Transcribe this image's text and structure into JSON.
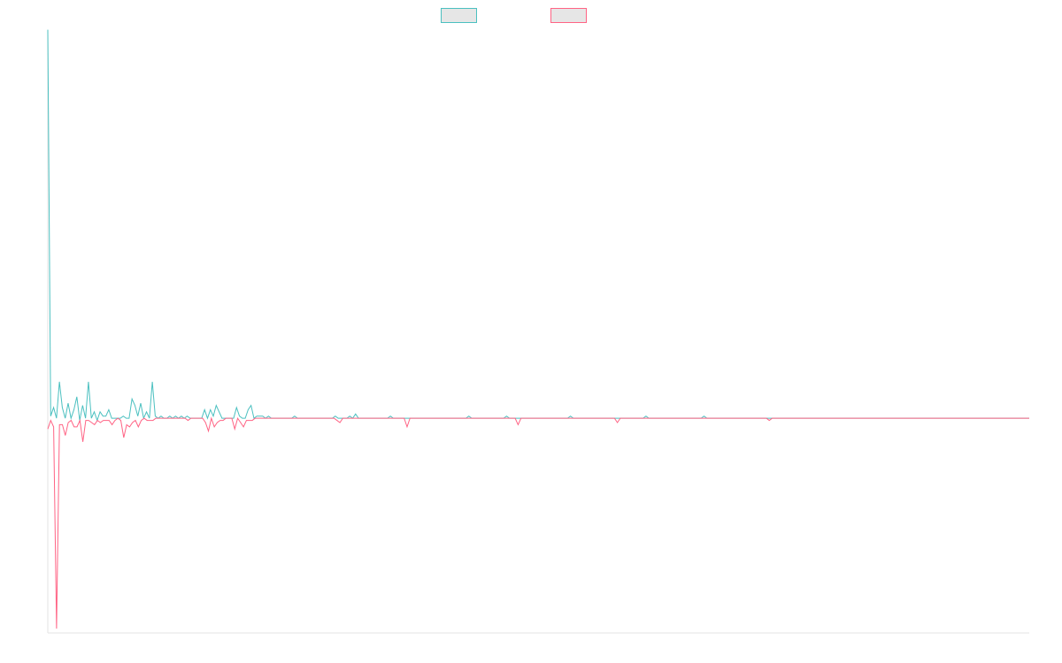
{
  "chart_data": {
    "type": "line",
    "title": "",
    "xlabel": "",
    "ylabel": "",
    "legend_position": "top-center",
    "grid": false,
    "x_range": [
      0,
      320
    ],
    "y_range": [
      -100,
      180
    ],
    "baseline": 0,
    "series": [
      {
        "name": "",
        "color": "#4bc0c0",
        "fill": "#e6e6e6",
        "values": [
          181,
          1,
          5,
          0,
          17,
          5,
          0,
          7,
          0,
          4,
          10,
          -1,
          6,
          0,
          17,
          0,
          3,
          -1,
          3,
          1,
          1,
          4,
          0,
          0,
          0,
          0,
          1,
          0,
          0,
          9,
          6,
          1,
          7,
          0,
          3,
          0,
          17,
          1,
          0,
          1,
          0,
          0,
          1,
          0,
          1,
          0,
          1,
          0,
          1,
          0,
          0,
          0,
          0,
          0,
          4,
          0,
          4,
          1,
          6,
          3,
          0,
          0,
          0,
          0,
          0,
          5,
          1,
          0,
          0,
          4,
          6,
          0,
          1,
          1,
          1,
          0,
          1,
          0,
          0,
          0,
          0,
          0,
          0,
          0,
          0,
          1,
          0,
          0,
          0,
          0,
          0,
          0,
          0,
          0,
          0,
          0,
          0,
          0,
          0,
          1,
          0,
          0,
          0,
          0,
          1,
          0,
          2,
          0,
          0,
          0,
          0,
          0,
          0,
          0,
          0,
          0,
          0,
          0,
          1,
          0,
          0,
          0,
          0,
          0,
          0,
          0,
          0,
          0,
          0,
          0,
          0,
          0,
          0,
          0,
          0,
          0,
          0,
          0,
          0,
          0,
          0,
          0,
          0,
          0,
          0,
          1,
          0,
          0,
          0,
          0,
          0,
          0,
          0,
          0,
          0,
          0,
          0,
          0,
          1,
          0,
          0,
          0,
          0,
          0,
          0,
          0,
          0,
          0,
          0,
          0,
          0,
          0,
          0,
          0,
          0,
          0,
          0,
          0,
          0,
          0,
          1,
          0,
          0,
          0,
          0,
          0,
          0,
          0,
          0,
          0,
          0,
          0,
          0,
          0,
          0,
          0,
          0,
          0,
          0,
          0,
          0,
          0,
          0,
          0,
          0,
          0,
          1,
          0,
          0,
          0,
          0,
          0,
          0,
          0,
          0,
          0,
          0,
          0,
          0,
          0,
          0,
          0,
          0,
          0,
          0,
          0,
          1,
          0,
          0,
          0,
          0,
          0,
          0,
          0,
          0,
          0,
          0,
          0,
          0,
          0,
          0,
          0,
          0,
          0,
          0,
          0,
          0,
          0,
          0,
          0,
          0,
          0,
          0,
          0,
          0,
          0,
          0,
          0,
          0,
          0,
          0,
          0,
          0,
          0,
          0,
          0,
          0,
          0,
          0,
          0,
          0,
          0,
          0,
          0,
          0,
          0,
          0,
          0,
          0,
          0,
          0,
          0,
          0,
          0,
          0,
          0,
          0,
          0,
          0,
          0,
          0,
          0,
          0,
          0,
          0,
          0,
          0,
          0,
          0,
          0,
          0,
          0,
          0,
          0,
          0,
          0,
          0,
          0,
          0,
          0,
          0,
          0,
          0,
          0,
          0,
          0,
          0,
          0,
          0,
          0,
          0,
          0,
          0,
          0,
          0,
          0,
          0,
          0,
          0,
          0,
          0,
          0,
          0,
          0,
          0,
          0,
          0,
          0,
          0
        ]
      },
      {
        "name": "",
        "color": "#ff6384",
        "fill": "#e6e6e6",
        "values": [
          -5,
          -1,
          -4,
          -98,
          -3,
          -3,
          -8,
          -2,
          -1,
          -4,
          -4,
          -1,
          -11,
          -1,
          -1,
          -2,
          -3,
          -1,
          -2,
          -1,
          -1,
          -1,
          -3,
          -1,
          0,
          -1,
          -9,
          -3,
          -4,
          -2,
          -1,
          -4,
          -1,
          0,
          -1,
          -1,
          -1,
          0,
          0,
          0,
          0,
          0,
          0,
          0,
          0,
          0,
          0,
          0,
          -1,
          0,
          0,
          0,
          0,
          0,
          -2,
          -6,
          0,
          -4,
          -2,
          -1,
          -1,
          0,
          0,
          0,
          -5,
          0,
          -2,
          -4,
          -1,
          -1,
          -1,
          0,
          0,
          0,
          0,
          0,
          0,
          0,
          0,
          0,
          0,
          0,
          0,
          0,
          0,
          0,
          0,
          0,
          0,
          0,
          0,
          0,
          0,
          0,
          0,
          0,
          0,
          0,
          0,
          -1,
          -2,
          0,
          0,
          0,
          0,
          0,
          0,
          0,
          0,
          0,
          0,
          0,
          0,
          0,
          0,
          0,
          0,
          0,
          0,
          0,
          0,
          0,
          0,
          -4,
          0,
          0,
          0,
          0,
          0,
          0,
          0,
          0,
          0,
          0,
          0,
          0,
          0,
          0,
          0,
          0,
          0,
          0,
          0,
          0,
          0,
          0,
          0,
          0,
          0,
          0,
          0,
          0,
          0,
          0,
          0,
          0,
          0,
          0,
          0,
          0,
          0,
          -3,
          0,
          0,
          0,
          0,
          0,
          0,
          0,
          0,
          0,
          0,
          0,
          0,
          0,
          0,
          0,
          0,
          0,
          0,
          0,
          0,
          0,
          0,
          0,
          0,
          0,
          0,
          0,
          0,
          0,
          0,
          0,
          0,
          0,
          -2,
          0,
          0,
          0,
          0,
          0,
          0,
          0,
          0,
          0,
          0,
          0,
          0,
          0,
          0,
          0,
          0,
          0,
          0,
          0,
          0,
          0,
          0,
          0,
          0,
          0,
          0,
          0,
          0,
          0,
          0,
          0,
          0,
          0,
          0,
          0,
          0,
          0,
          0,
          0,
          0,
          0,
          0,
          0,
          0,
          0,
          0,
          0,
          0,
          0,
          0,
          0,
          -1,
          0,
          0,
          0,
          0,
          0,
          0,
          0,
          0,
          0,
          0,
          0,
          0,
          0,
          0,
          0,
          0,
          0,
          0,
          0,
          0,
          0,
          0,
          0,
          0,
          0,
          0,
          0,
          0,
          0,
          0,
          0,
          0,
          0,
          0,
          0,
          0,
          0,
          0,
          0,
          0,
          0,
          0,
          0,
          0,
          0,
          0,
          0,
          0,
          0,
          0,
          0,
          0,
          0,
          0,
          0,
          0,
          0,
          0,
          0,
          0,
          0,
          0,
          0,
          0,
          0,
          0,
          0,
          0,
          0,
          0,
          0,
          0,
          0,
          0,
          0,
          0,
          0,
          0,
          0,
          0,
          0,
          0,
          0,
          0,
          0,
          0,
          0,
          0,
          0
        ]
      }
    ]
  }
}
